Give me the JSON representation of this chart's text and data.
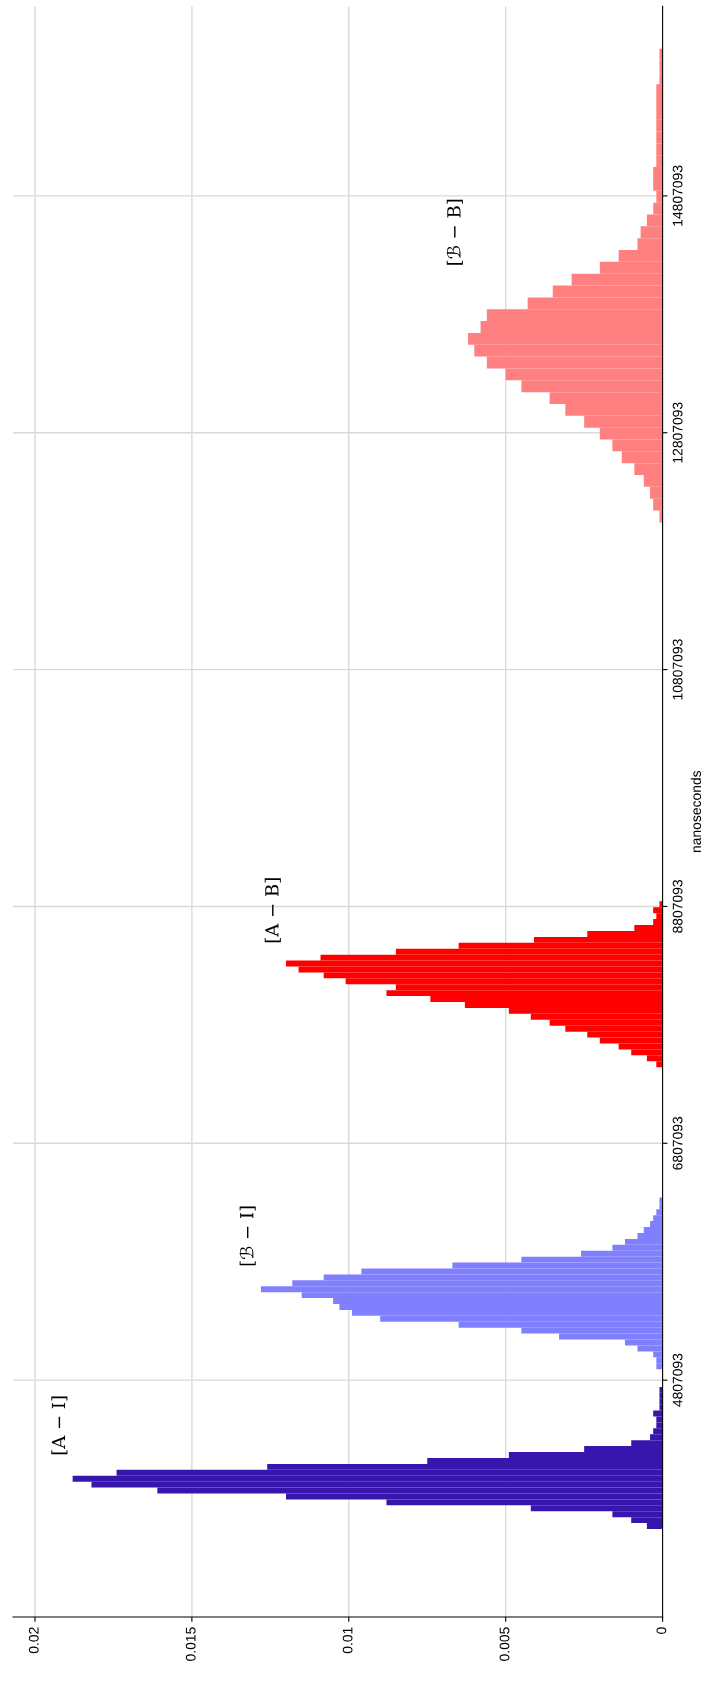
{
  "chart_data": {
    "type": "bar",
    "orientation": "horizontal",
    "ylabel": "nanoseconds",
    "series": [
      {
        "name": "[A − I]",
        "color": "#3716ad",
        "x": [
          3575000,
          3625000,
          3675000,
          3725000,
          3775000,
          3825000,
          3875000,
          3925000,
          3975000,
          4025000,
          4075000,
          4125000,
          4175000,
          4225000,
          4275000,
          4325000,
          4375000,
          4425000,
          4475000,
          4525000,
          4575000,
          4625000,
          4675000,
          4725000
        ],
        "values": [
          0.0005,
          0.001,
          0.0016,
          0.0042,
          0.0088,
          0.012,
          0.0161,
          0.0182,
          0.0188,
          0.0174,
          0.0126,
          0.0075,
          0.0049,
          0.0025,
          0.001,
          0.0004,
          0.0003,
          0.0002,
          0.0002,
          0.0003,
          0.0001,
          0.0001,
          0.0001,
          0.0001
        ]
      },
      {
        "name": "[ℬ − I]",
        "color": "#8080ff",
        "x": [
          4925000,
          4975000,
          5025000,
          5075000,
          5125000,
          5175000,
          5225000,
          5275000,
          5325000,
          5375000,
          5425000,
          5475000,
          5525000,
          5575000,
          5625000,
          5675000,
          5725000,
          5775000,
          5825000,
          5875000,
          5925000,
          5975000,
          6025000,
          6075000,
          6125000,
          6175000,
          6225000,
          6275000,
          6325000
        ],
        "values": [
          0.0002,
          0.0002,
          0.0003,
          0.0008,
          0.0012,
          0.0033,
          0.0045,
          0.0065,
          0.009,
          0.0099,
          0.0103,
          0.0105,
          0.0115,
          0.0128,
          0.0118,
          0.0108,
          0.0096,
          0.0067,
          0.0045,
          0.0026,
          0.0016,
          0.0012,
          0.0008,
          0.0006,
          0.0004,
          0.0003,
          0.0002,
          0.0001,
          0.0001
        ]
      },
      {
        "name": "[A − B]",
        "color": "#ff0000",
        "x": [
          7475000,
          7525000,
          7575000,
          7625000,
          7675000,
          7725000,
          7775000,
          7825000,
          7875000,
          7925000,
          7975000,
          8025000,
          8075000,
          8125000,
          8175000,
          8225000,
          8275000,
          8325000,
          8375000,
          8425000,
          8475000,
          8525000,
          8575000,
          8625000,
          8675000,
          8725000,
          8775000,
          8825000
        ],
        "values": [
          0.0002,
          0.0005,
          0.001,
          0.0014,
          0.002,
          0.0024,
          0.0031,
          0.0036,
          0.0042,
          0.0049,
          0.0063,
          0.0074,
          0.0088,
          0.0085,
          0.0101,
          0.0108,
          0.0116,
          0.012,
          0.0109,
          0.0085,
          0.0065,
          0.0041,
          0.0024,
          0.0009,
          0.0003,
          0.0002,
          0.0003,
          0.0001
        ]
      },
      {
        "name": "[ℬ − B]",
        "color": "#ff8080",
        "x": [
          12100000,
          12200000,
          12300000,
          12400000,
          12500000,
          12600000,
          12700000,
          12800000,
          12900000,
          13000000,
          13100000,
          13200000,
          13300000,
          13400000,
          13500000,
          13600000,
          13700000,
          13800000,
          13900000,
          14000000,
          14100000,
          14200000,
          14300000,
          14400000,
          14500000,
          14600000,
          14700000,
          14800000,
          14900000,
          15000000,
          15100000,
          15200000,
          15300000,
          15400000,
          15500000,
          15600000,
          15700000,
          15800000,
          15900000,
          16000000
        ],
        "values": [
          0.0001,
          0.0003,
          0.0004,
          0.0006,
          0.0009,
          0.0013,
          0.0016,
          0.002,
          0.0025,
          0.0031,
          0.0036,
          0.0045,
          0.005,
          0.0056,
          0.006,
          0.0062,
          0.0058,
          0.0056,
          0.0043,
          0.0035,
          0.0029,
          0.002,
          0.0014,
          0.0008,
          0.0007,
          0.0005,
          0.0003,
          0.0002,
          0.0003,
          0.0003,
          0.0002,
          0.0002,
          0.0002,
          0.0002,
          0.0002,
          0.0002,
          0.0002,
          0.0001,
          0.0001,
          0.0001
        ]
      }
    ],
    "xlim": [
      0.0207,
      0
    ],
    "xticks": [
      0.02,
      0.015,
      0.01,
      0.005,
      0
    ],
    "ylim": [
      2807093,
      16407093
    ],
    "yticks": [
      4807093,
      6807093,
      8807093,
      10807093,
      12807093,
      14807093
    ],
    "grid": true
  }
}
